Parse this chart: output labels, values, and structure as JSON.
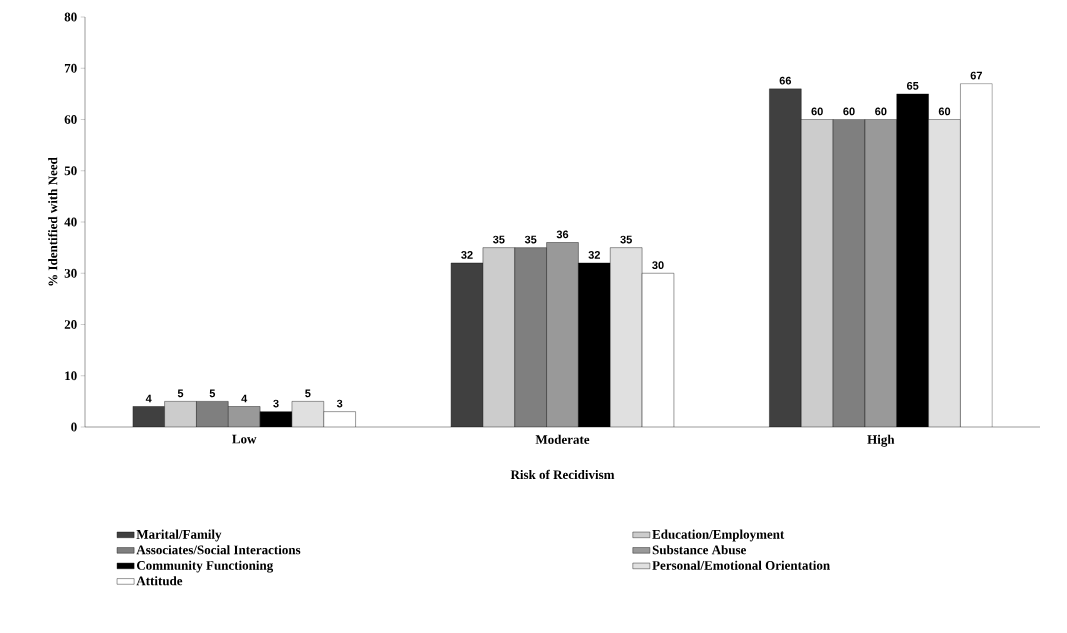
{
  "chart_data": {
    "type": "bar",
    "xlabel": "Risk of Recidivism",
    "ylabel": "% Identified with Need",
    "categories": [
      "Low",
      "Moderate",
      "High"
    ],
    "series": [
      {
        "name": "Marital/Family",
        "color": "#404040",
        "values": [
          4,
          32,
          66
        ]
      },
      {
        "name": "Education/Employment",
        "color": "#cccccc",
        "values": [
          5,
          35,
          60
        ]
      },
      {
        "name": "Associates/Social Interactions",
        "color": "#7f7f7f",
        "values": [
          5,
          35,
          60
        ]
      },
      {
        "name": "Substance Abuse",
        "color": "#999999",
        "values": [
          4,
          36,
          60
        ]
      },
      {
        "name": "Community Functioning",
        "color": "#000000",
        "values": [
          3,
          32,
          65
        ]
      },
      {
        "name": "Personal/Emotional Orientation",
        "color": "#e0e0e0",
        "values": [
          5,
          35,
          60
        ]
      },
      {
        "name": "Attitude",
        "color": "#ffffff",
        "values": [
          3,
          30,
          67
        ]
      }
    ],
    "ylim": [
      0,
      80
    ],
    "yticks": [
      0,
      10,
      20,
      30,
      40,
      50,
      60,
      70,
      80
    ],
    "data_labels": true,
    "legend": "bottom",
    "grid": false
  }
}
